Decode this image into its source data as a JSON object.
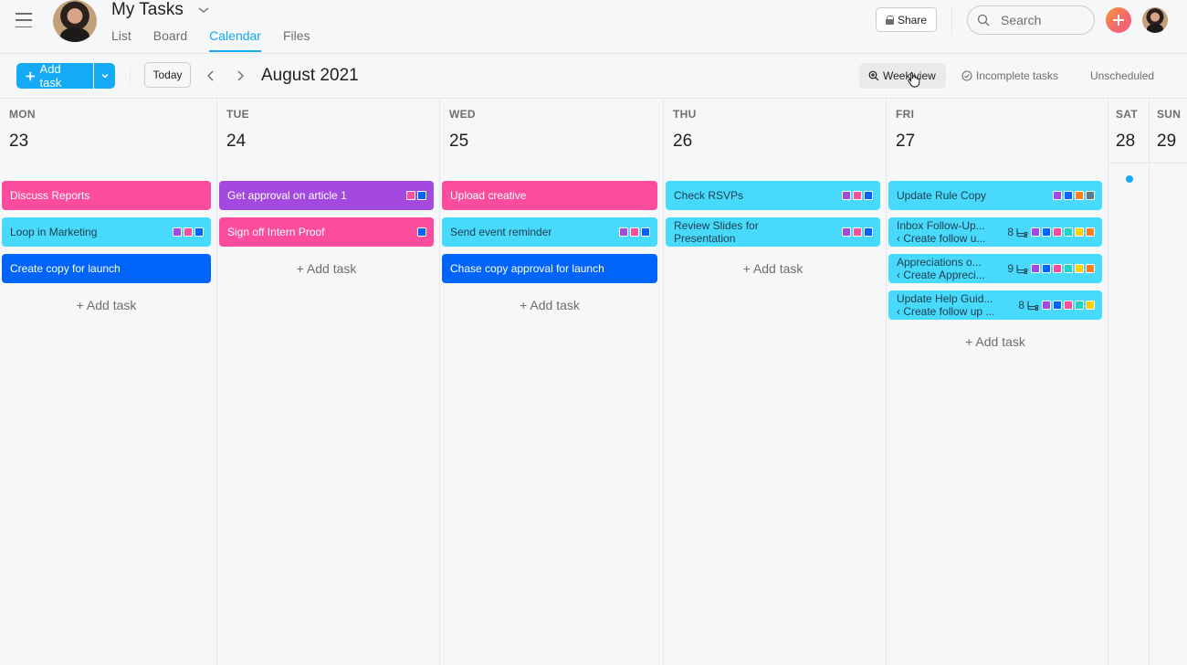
{
  "header": {
    "title": "My Tasks",
    "tabs": [
      {
        "label": "List",
        "active": false
      },
      {
        "label": "Board",
        "active": false
      },
      {
        "label": "Calendar",
        "active": true
      },
      {
        "label": "Files",
        "active": false
      }
    ],
    "share_label": "Share",
    "search_placeholder": "Search"
  },
  "toolbar": {
    "add_task_label": "Add task",
    "today_label": "Today",
    "month_label": "August 2021",
    "week_view_label": "Week view",
    "incomplete_label": "Incomplete tasks",
    "unscheduled_label": "Unscheduled"
  },
  "colors": {
    "accent": "#14aaf5",
    "pink": "#fc4c9e",
    "purple": "#a349e0",
    "cyan": "#48dafd",
    "blue": "#0064fb",
    "orange": "#fd7e1b",
    "teal": "#1fd4c6",
    "yellow": "#ffd100",
    "gray": "#5c7a8c"
  },
  "calendar": {
    "add_task_label": "+ Add task",
    "days": [
      {
        "dow": "MON",
        "date": "23",
        "tasks": [
          {
            "name": "Discuss Reports",
            "color": "pink",
            "tags": []
          },
          {
            "name": "Loop in Marketing",
            "color": "cyan",
            "tags": [
              "purple",
              "pink",
              "blue"
            ]
          },
          {
            "name": "Create copy for launch",
            "color": "blue",
            "tags": []
          }
        ]
      },
      {
        "dow": "TUE",
        "date": "24",
        "tasks": [
          {
            "name": "Get approval on article 1",
            "color": "purple",
            "tags": [
              "pink",
              "blue"
            ]
          },
          {
            "name": "Sign off Intern Proof",
            "color": "pink",
            "tags": [
              "blue"
            ]
          }
        ]
      },
      {
        "dow": "WED",
        "date": "25",
        "tasks": [
          {
            "name": "Upload creative",
            "color": "pink",
            "tags": []
          },
          {
            "name": "Send event reminder",
            "color": "cyan",
            "tags": [
              "purple",
              "pink",
              "blue"
            ]
          },
          {
            "name": "Chase copy approval for launch",
            "color": "blue",
            "tags": []
          }
        ]
      },
      {
        "dow": "THU",
        "date": "26",
        "tasks": [
          {
            "name": "Check RSVPs",
            "color": "cyan",
            "tags": [
              "purple",
              "pink",
              "blue"
            ]
          },
          {
            "name": "Review Slides for",
            "name2": "Presentation",
            "color": "cyan",
            "tags": [
              "purple",
              "pink",
              "blue"
            ]
          }
        ]
      },
      {
        "dow": "FRI",
        "date": "27",
        "tasks": [
          {
            "name": "Update Rule Copy",
            "color": "cyan",
            "tags": [
              "purple",
              "blue",
              "orange",
              "gray"
            ]
          },
          {
            "name": "Inbox Follow-Up...",
            "parent": "‹ Create follow u...",
            "subtasks": "8",
            "color": "cyan",
            "tags": [
              "purple",
              "blue",
              "pink",
              "teal",
              "yellow",
              "orange"
            ]
          },
          {
            "name": "Appreciations o...",
            "parent": "‹ Create Appreci...",
            "subtasks": "9",
            "color": "cyan",
            "tags": [
              "purple",
              "blue",
              "pink",
              "teal",
              "yellow",
              "orange"
            ]
          },
          {
            "name": "Update Help Guid...",
            "parent": "‹ Create follow up ...",
            "subtasks": "8",
            "color": "cyan",
            "tags": [
              "purple",
              "blue",
              "pink",
              "teal",
              "yellow"
            ]
          }
        ]
      },
      {
        "dow": "SAT",
        "date": "28",
        "has_dot": true
      },
      {
        "dow": "SUN",
        "date": "29"
      }
    ]
  }
}
